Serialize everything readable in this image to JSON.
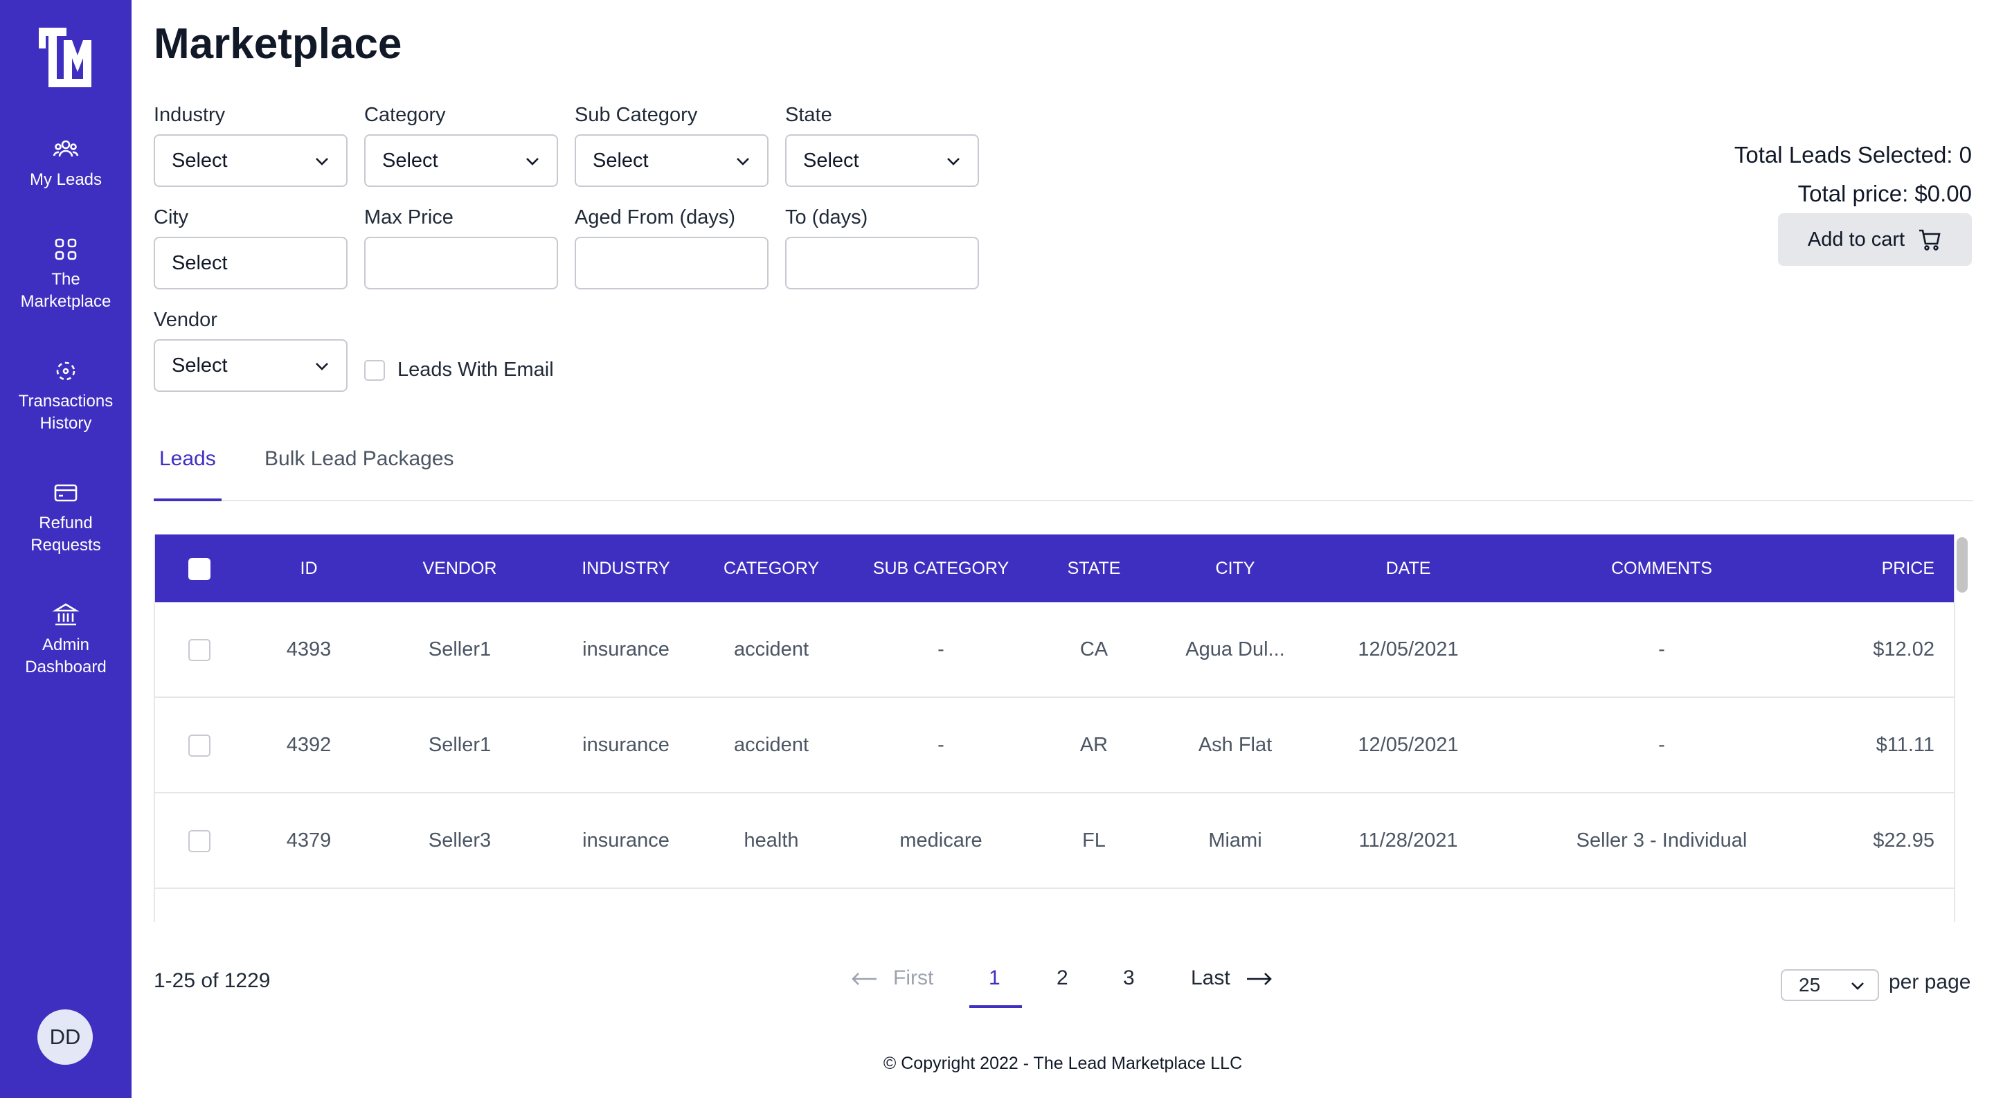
{
  "app": {
    "title": "Marketplace"
  },
  "sidebar": {
    "items": [
      {
        "label": "My Leads",
        "icon": "users-icon"
      },
      {
        "label": "The\nMarketplace",
        "icon": "grid-icon"
      },
      {
        "label": "Transactions\nHistory",
        "icon": "transactions-icon"
      },
      {
        "label": "Refund\nRequests",
        "icon": "card-icon"
      },
      {
        "label": "Admin\nDashboard",
        "icon": "bank-icon"
      }
    ],
    "avatar": "DD"
  },
  "filters": {
    "industry": {
      "label": "Industry",
      "value": "Select"
    },
    "category": {
      "label": "Category",
      "value": "Select"
    },
    "sub_category": {
      "label": "Sub Category",
      "value": "Select"
    },
    "state": {
      "label": "State",
      "value": "Select"
    },
    "city": {
      "label": "City",
      "value": "Select"
    },
    "max_price": {
      "label": "Max Price",
      "value": ""
    },
    "aged_from": {
      "label": "Aged From (days)",
      "value": ""
    },
    "aged_to": {
      "label": "To (days)",
      "value": ""
    },
    "vendor": {
      "label": "Vendor",
      "value": "Select"
    },
    "leads_with_email": {
      "label": "Leads With Email",
      "checked": false
    }
  },
  "summary": {
    "total_leads": "Total Leads Selected: 0",
    "total_price": "Total price: $0.00",
    "add_to_cart": "Add to cart"
  },
  "tabs": [
    {
      "label": "Leads",
      "active": true
    },
    {
      "label": "Bulk Lead Packages",
      "active": false
    }
  ],
  "table": {
    "columns": [
      "ID",
      "VENDOR",
      "INDUSTRY",
      "CATEGORY",
      "SUB CATEGORY",
      "STATE",
      "CITY",
      "DATE",
      "COMMENTS",
      "PRICE"
    ],
    "rows": [
      {
        "id": "4393",
        "vendor": "Seller1",
        "industry": "insurance",
        "category": "accident",
        "sub_category": "-",
        "state": "CA",
        "city": "Agua Dul...",
        "date": "12/05/2021",
        "comments": "-",
        "price": "$12.02"
      },
      {
        "id": "4392",
        "vendor": "Seller1",
        "industry": "insurance",
        "category": "accident",
        "sub_category": "-",
        "state": "AR",
        "city": "Ash Flat",
        "date": "12/05/2021",
        "comments": "-",
        "price": "$11.11"
      },
      {
        "id": "4379",
        "vendor": "Seller3",
        "industry": "insurance",
        "category": "health",
        "sub_category": "medicare",
        "state": "FL",
        "city": "Miami",
        "date": "11/28/2021",
        "comments": "Seller 3 - Individual",
        "price": "$22.95"
      }
    ]
  },
  "pagination": {
    "range": "1-25 of 1229",
    "first": "First",
    "pages": [
      "1",
      "2",
      "3"
    ],
    "current": "1",
    "last": "Last",
    "per_page_value": "25",
    "per_page_label": "per page"
  },
  "footer": {
    "copyright": "© Copyright 2022 - The Lead Marketplace LLC"
  },
  "colors": {
    "primary": "#3f2fc1",
    "muted": "#9ca3af"
  }
}
